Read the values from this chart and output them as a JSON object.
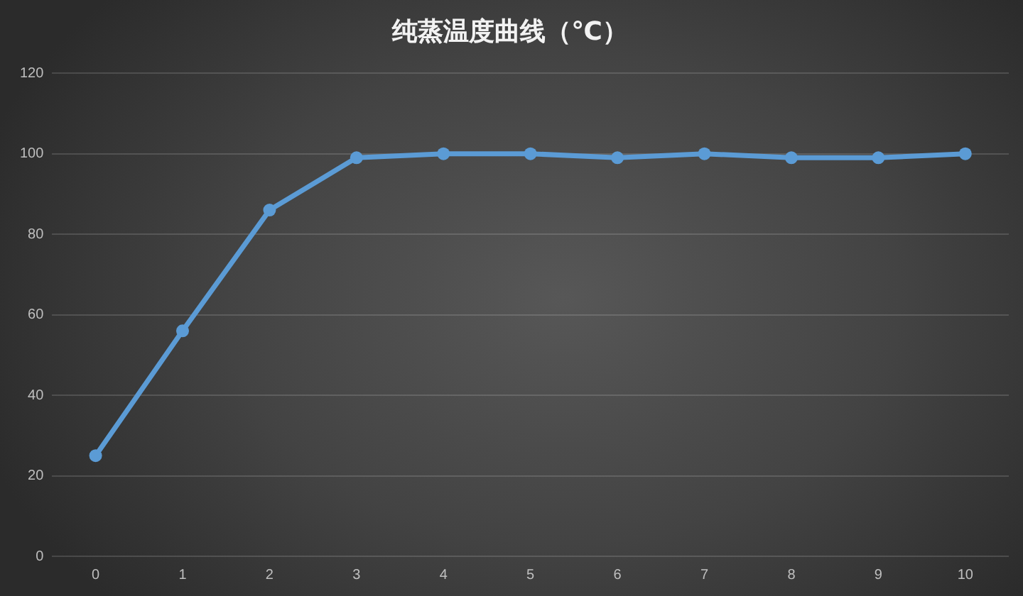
{
  "chart_data": {
    "type": "line",
    "title": "纯蒸温度曲线（℃）",
    "categories": [
      "0",
      "1",
      "2",
      "3",
      "4",
      "5",
      "6",
      "7",
      "8",
      "9",
      "10"
    ],
    "values": [
      25,
      56,
      86,
      99,
      100,
      100,
      99,
      100,
      99,
      99,
      100
    ],
    "color": "#5b9bd5",
    "ylim": [
      0,
      120
    ],
    "yticks": [
      0,
      20,
      40,
      60,
      80,
      100,
      120
    ],
    "grid": "y",
    "marker": "circle",
    "line_style": "solid",
    "legend": false
  }
}
